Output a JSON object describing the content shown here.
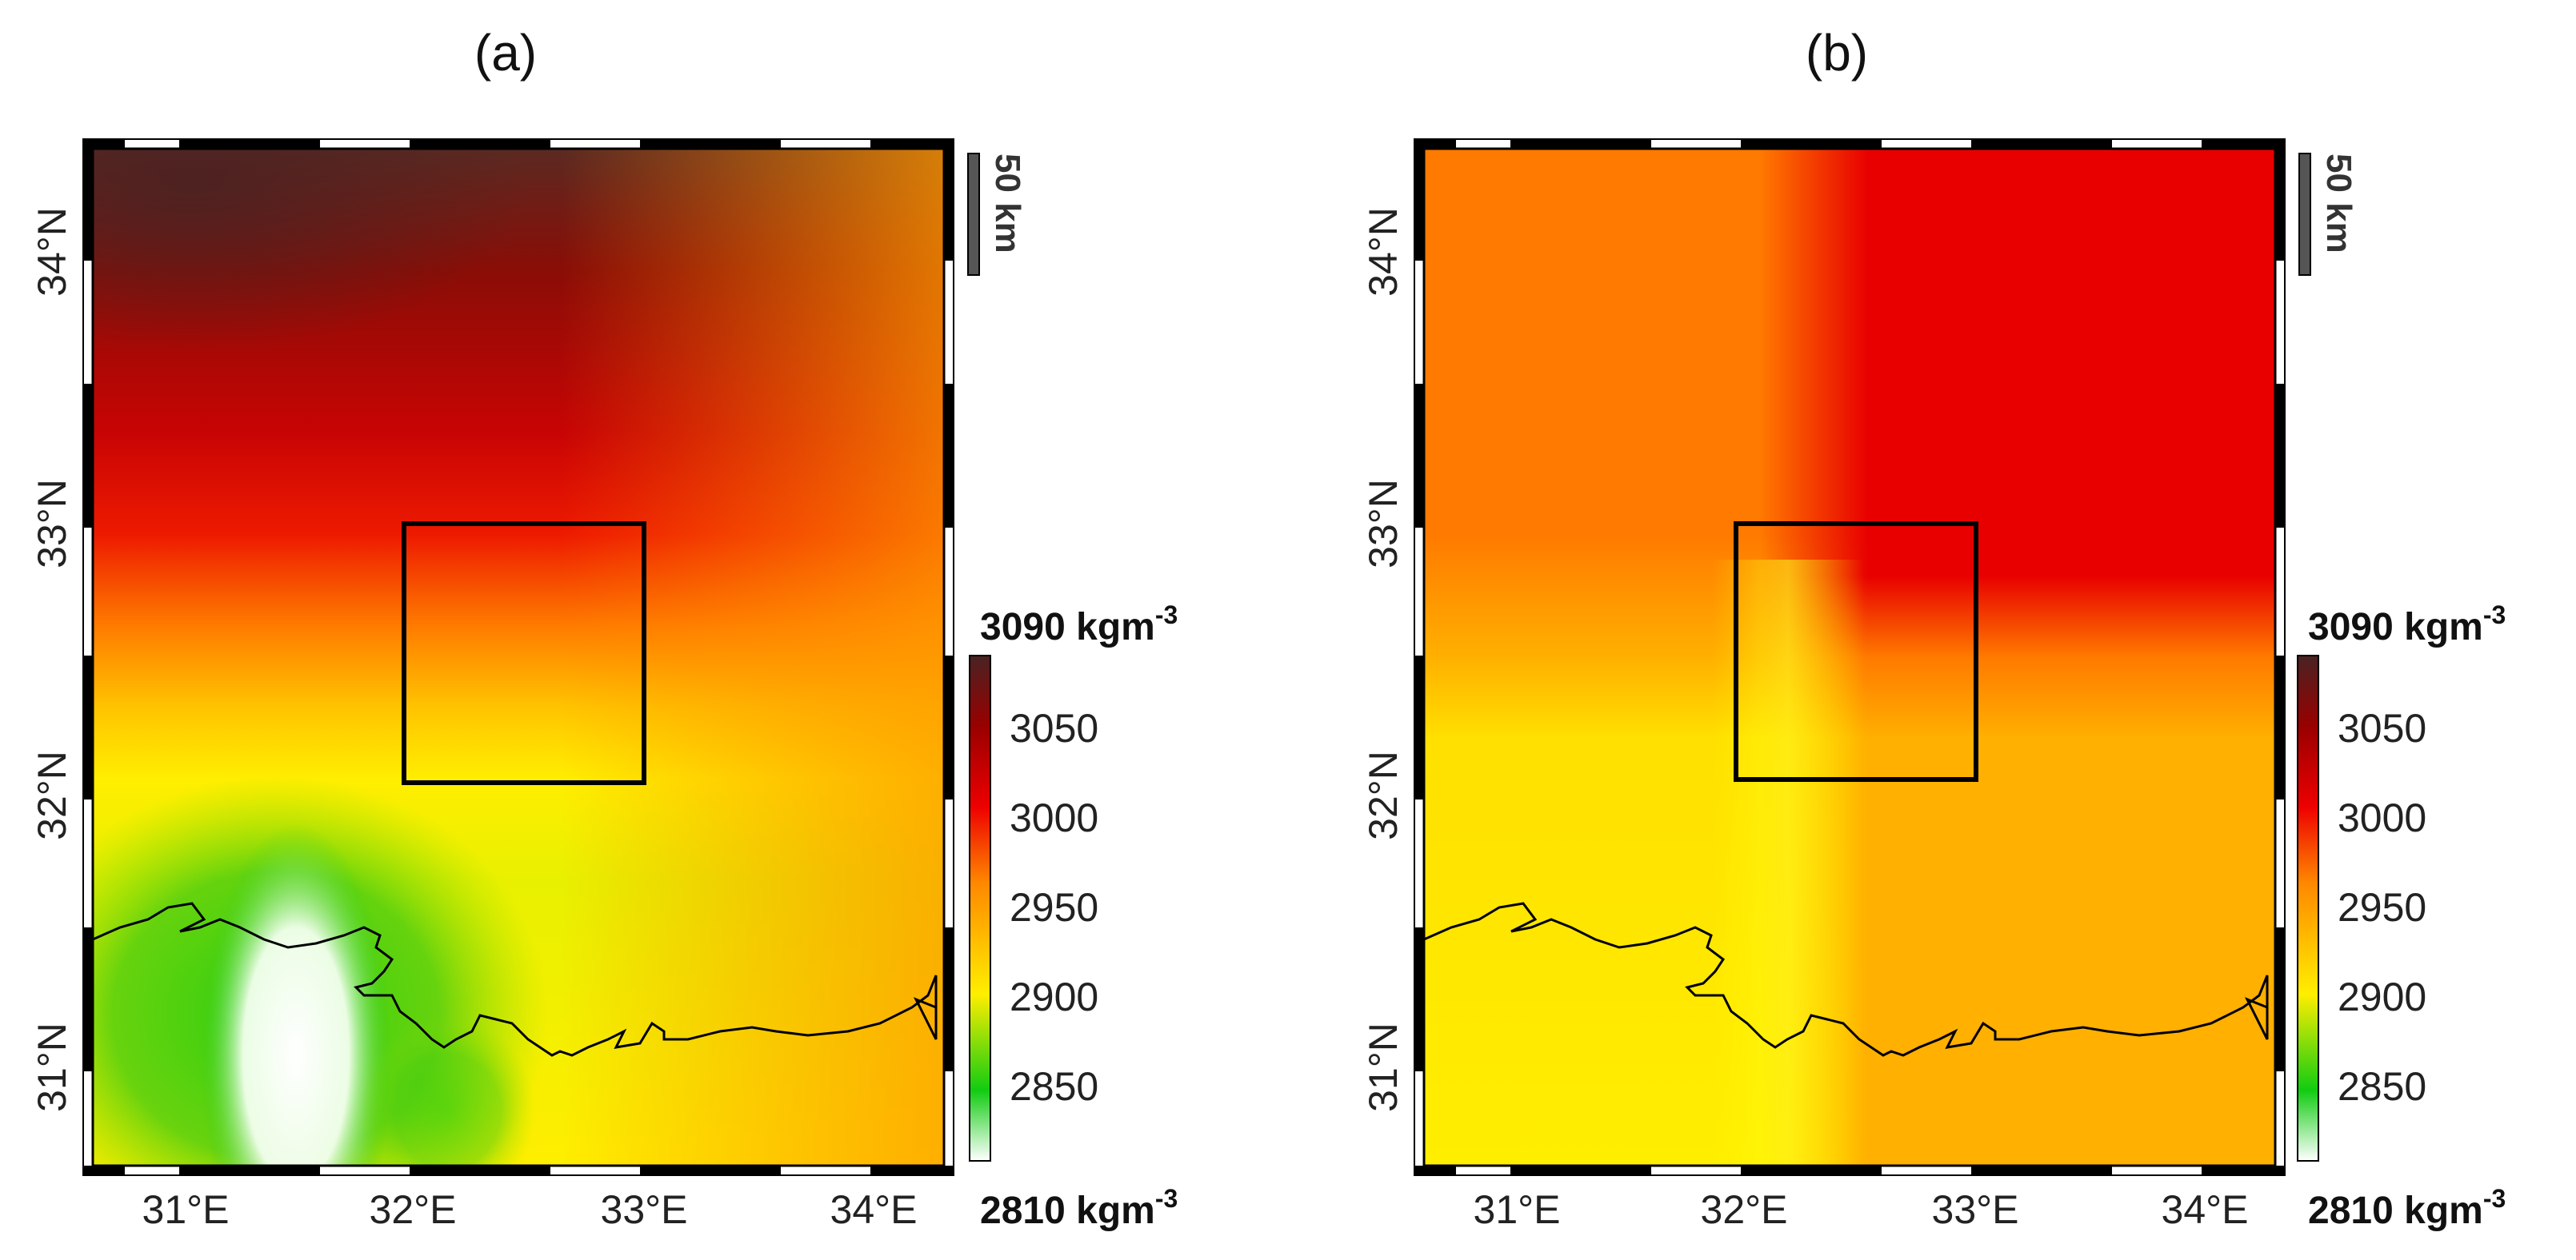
{
  "panels": [
    {
      "title": "(a)",
      "lon_ticks": [
        "31°E",
        "32°E",
        "33°E",
        "34°E"
      ],
      "lat_ticks": [
        "31°N",
        "32°N",
        "33°N",
        "34°N"
      ],
      "scale_bar": "50 km",
      "colorbar": {
        "max_label": "3090 kgm",
        "min_label": "2810 kgm",
        "unit_exp": "-3",
        "ticks": [
          "3050",
          "3000",
          "2950",
          "2900",
          "2850"
        ]
      },
      "study_box": {
        "lon_min": 32.0,
        "lon_max": 33.05,
        "lat_min": 32.08,
        "lat_max": 33.0
      }
    },
    {
      "title": "(b)",
      "lon_ticks": [
        "31°E",
        "32°E",
        "33°E",
        "34°E"
      ],
      "lat_ticks": [
        "31°N",
        "32°N",
        "33°N",
        "34°N"
      ],
      "scale_bar": "50 km",
      "colorbar": {
        "max_label": "3090 kgm",
        "min_label": "2810 kgm",
        "unit_exp": "-3",
        "ticks": [
          "3050",
          "3000",
          "2950",
          "2900",
          "2850"
        ]
      },
      "study_box": {
        "lon_min": 32.0,
        "lon_max": 33.05,
        "lat_min": 32.08,
        "lat_max": 33.0
      }
    }
  ],
  "map_extent": {
    "lon_min": 30.65,
    "lon_max": 34.3,
    "lat_min": 30.7,
    "lat_max": 34.45
  },
  "colorbar_range": [
    2810,
    3090
  ],
  "colors": {
    "white": "#ffffff",
    "green": "#11cc11",
    "yellow": "#ffee00",
    "orange": "#ff8800",
    "red": "#ee0000",
    "dark_red": "#990000",
    "brown": "#4a2222",
    "frame": "#000000"
  }
}
